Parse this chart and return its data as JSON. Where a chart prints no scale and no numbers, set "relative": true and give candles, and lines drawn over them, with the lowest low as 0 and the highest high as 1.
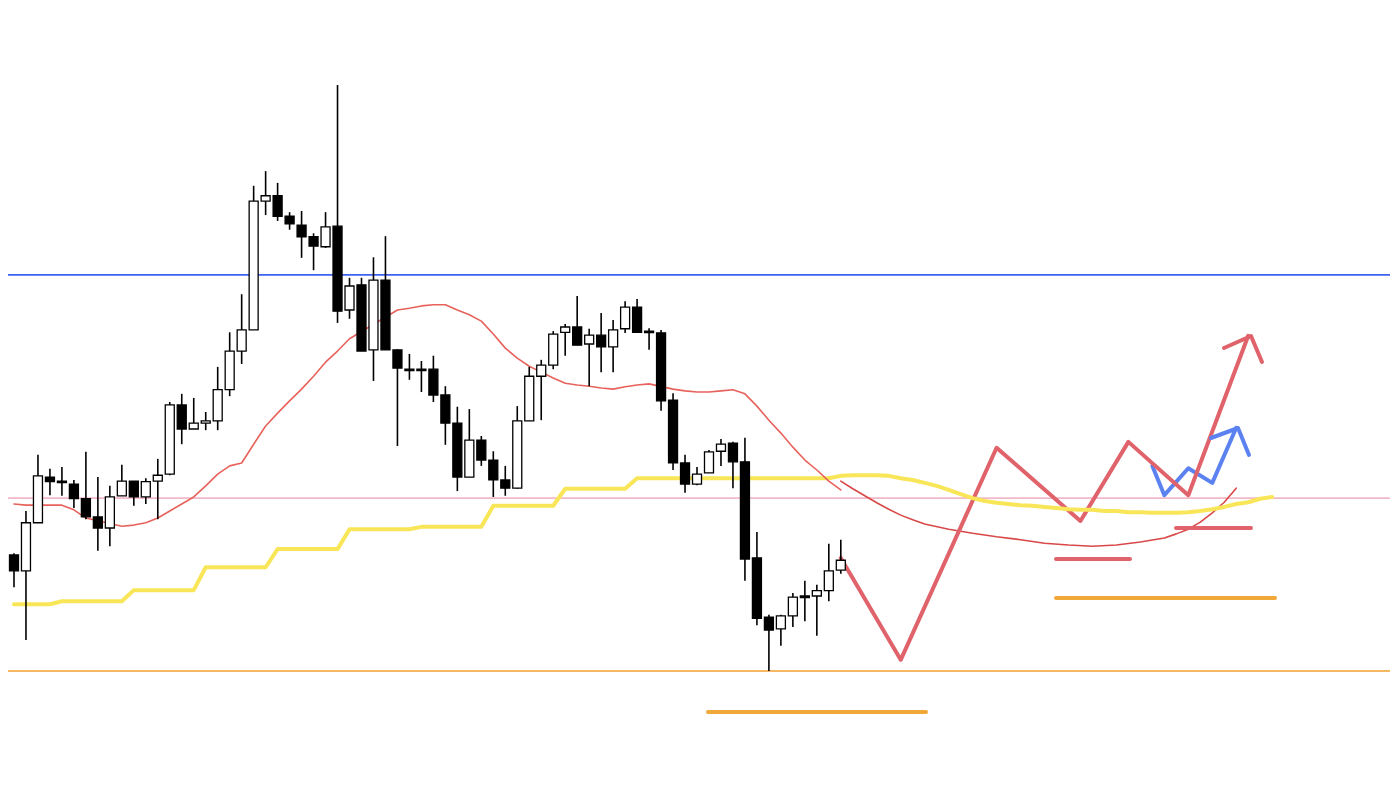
{
  "chart_data": {
    "type": "candlestick",
    "relative": true,
    "marker": "none",
    "legend": false,
    "categories": [
      null,
      null,
      null,
      null,
      null,
      null,
      null,
      null,
      null,
      null,
      null,
      null,
      null,
      null,
      null,
      null,
      null,
      null,
      null,
      null,
      null,
      null,
      null,
      null,
      null,
      null,
      null,
      null,
      null,
      null,
      null,
      null,
      null,
      null,
      null,
      null,
      null,
      null,
      null,
      null,
      null,
      null,
      null,
      null,
      null,
      null,
      null,
      null,
      null,
      null,
      null,
      null,
      null,
      null,
      null,
      null,
      null,
      null,
      null,
      null,
      null,
      null,
      null,
      null,
      null,
      null,
      null,
      null,
      null,
      null,
      null,
      null,
      null,
      null,
      null,
      null,
      null,
      null,
      null,
      null,
      null,
      null,
      null,
      null,
      null,
      null,
      null,
      null,
      null,
      null,
      null,
      null,
      null,
      null,
      null,
      null,
      null,
      null,
      null,
      null,
      null,
      null,
      null,
      null,
      null,
      null,
      null,
      null,
      null,
      null,
      null,
      null,
      null,
      null,
      null,
      null
    ],
    "ohlc": [
      [
        0.198,
        0.201,
        0.143,
        0.171
      ],
      [
        0.171,
        0.273,
        0.053,
        0.253
      ],
      [
        0.253,
        0.369,
        0.253,
        0.333
      ],
      [
        0.331,
        0.345,
        0.3,
        0.323
      ],
      [
        0.324,
        0.348,
        0.299,
        0.323
      ],
      [
        0.319,
        0.326,
        0.278,
        0.294
      ],
      [
        0.294,
        0.374,
        0.259,
        0.263
      ],
      [
        0.263,
        0.331,
        0.205,
        0.244
      ],
      [
        0.244,
        0.316,
        0.213,
        0.297
      ],
      [
        0.299,
        0.352,
        0.299,
        0.324
      ],
      [
        0.324,
        0.324,
        0.282,
        0.297
      ],
      [
        0.297,
        0.329,
        0.285,
        0.323
      ],
      [
        0.324,
        0.362,
        0.259,
        0.334
      ],
      [
        0.336,
        0.459,
        0.334,
        0.454
      ],
      [
        0.454,
        0.473,
        0.387,
        0.413
      ],
      [
        0.413,
        0.466,
        0.413,
        0.423
      ],
      [
        0.423,
        0.442,
        0.411,
        0.427
      ],
      [
        0.427,
        0.519,
        0.411,
        0.48
      ],
      [
        0.48,
        0.578,
        0.469,
        0.546
      ],
      [
        0.546,
        0.643,
        0.524,
        0.582
      ],
      [
        0.582,
        0.828,
        0.582,
        0.802
      ],
      [
        0.802,
        0.853,
        0.778,
        0.811
      ],
      [
        0.811,
        0.833,
        0.768,
        0.776
      ],
      [
        0.776,
        0.783,
        0.753,
        0.763
      ],
      [
        0.761,
        0.785,
        0.705,
        0.741
      ],
      [
        0.741,
        0.747,
        0.684,
        0.725
      ],
      [
        0.724,
        0.783,
        0.722,
        0.758
      ],
      [
        0.759,
        1,
        0.594,
        0.614
      ],
      [
        0.616,
        0.671,
        0.601,
        0.657
      ],
      [
        0.659,
        0.671,
        0.546,
        0.546
      ],
      [
        0.548,
        0.706,
        0.495,
        0.667
      ],
      [
        0.667,
        0.742,
        0.548,
        0.548
      ],
      [
        0.548,
        0.549,
        0.384,
        0.517
      ],
      [
        0.515,
        0.541,
        0.497,
        0.514
      ],
      [
        0.515,
        0.529,
        0.476,
        0.514
      ],
      [
        0.515,
        0.538,
        0.459,
        0.471
      ],
      [
        0.471,
        0.486,
        0.386,
        0.423
      ],
      [
        0.423,
        0.451,
        0.307,
        0.331
      ],
      [
        0.331,
        0.447,
        0.331,
        0.394
      ],
      [
        0.394,
        0.401,
        0.35,
        0.36
      ],
      [
        0.36,
        0.375,
        0.297,
        0.326
      ],
      [
        0.326,
        0.35,
        0.299,
        0.312
      ],
      [
        0.312,
        0.452,
        0.311,
        0.427
      ],
      [
        0.427,
        0.519,
        0.427,
        0.503
      ],
      [
        0.503,
        0.531,
        0.428,
        0.522
      ],
      [
        0.522,
        0.58,
        0.515,
        0.575
      ],
      [
        0.578,
        0.592,
        0.538,
        0.587
      ],
      [
        0.587,
        0.64,
        0.556,
        0.556
      ],
      [
        0.558,
        0.584,
        0.486,
        0.573
      ],
      [
        0.573,
        0.611,
        0.51,
        0.553
      ],
      [
        0.553,
        0.599,
        0.51,
        0.582
      ],
      [
        0.584,
        0.631,
        0.577,
        0.621
      ],
      [
        0.621,
        0.635,
        0.578,
        0.578
      ],
      [
        0.58,
        0.585,
        0.548,
        0.578
      ],
      [
        0.577,
        0.582,
        0.444,
        0.461
      ],
      [
        0.462,
        0.474,
        0.343,
        0.355
      ],
      [
        0.355,
        0.369,
        0.304,
        0.319
      ],
      [
        0.319,
        0.348,
        0.317,
        0.336
      ],
      [
        0.338,
        0.377,
        0.338,
        0.374
      ],
      [
        0.375,
        0.396,
        0.35,
        0.387
      ],
      [
        0.389,
        0.391,
        0.312,
        0.357
      ],
      [
        0.357,
        0.398,
        0.154,
        0.191
      ],
      [
        0.193,
        0.237,
        0.078,
        0.09
      ],
      [
        0.092,
        0.096,
        0,
        0.07
      ],
      [
        0.072,
        0.096,
        0.043,
        0.094
      ],
      [
        0.094,
        0.133,
        0.075,
        0.126
      ],
      [
        0.126,
        0.154,
        0.085,
        0.128
      ],
      [
        0.128,
        0.147,
        0.06,
        0.137
      ],
      [
        0.137,
        0.217,
        0.119,
        0.171
      ],
      [
        0.172,
        0.224,
        0.166,
        0.189
      ],
      null,
      null,
      null,
      null,
      null,
      null,
      null,
      null,
      null,
      null,
      null,
      null,
      null,
      null,
      null,
      null,
      null,
      null,
      null,
      null,
      null,
      null,
      null,
      null,
      null,
      null,
      null,
      null,
      null,
      null,
      null,
      null,
      null,
      null,
      null,
      null,
      null,
      null,
      null,
      null,
      null,
      null,
      null,
      null,
      null,
      null
    ],
    "series": [
      {
        "type": "line",
        "color": "#e8625c",
        "values": [
          0.285,
          0.283,
          null,
          0.283,
          0.283,
          0.275,
          0.261,
          null,
          null,
          0.247,
          0.249,
          0.253,
          0.261,
          0.273,
          0.285,
          0.297,
          0.316,
          0.336,
          0.35,
          0.355,
          0.387,
          0.418,
          0.44,
          0.461,
          0.481,
          0.503,
          0.527,
          0.546,
          0.567,
          null,
          null,
          null,
          0.616,
          0.619,
          0.623,
          0.625,
          0.625,
          0.616,
          0.608,
          0.597,
          0.575,
          0.551,
          0.534,
          0.52,
          0.51,
          0.5,
          0.491,
          0.488,
          0.486,
          0.483,
          0.481,
          0.485,
          0.488,
          0.49,
          null,
          0.481,
          0.478,
          0.476,
          0.476,
          0.478,
          0.48,
          0.473,
          0.452,
          0.428,
          0.406,
          0.382,
          0.36,
          0.343,
          0.324,
          0.309,
          null,
          null,
          null,
          null,
          null,
          null,
          null,
          null,
          null,
          null,
          null,
          null,
          null,
          null,
          null,
          null,
          null,
          null,
          null,
          null,
          null,
          null,
          null,
          null,
          null,
          null,
          null,
          null,
          null,
          null,
          null,
          null,
          null,
          null,
          null,
          null,
          null,
          null,
          null,
          null,
          null,
          null,
          null,
          null,
          null,
          null
        ]
      },
      {
        "type": "line",
        "color": "#f8e658",
        "values": [
          0.114,
          0.114,
          0.114,
          0.114,
          0.119,
          0.119,
          0.119,
          0.119,
          0.119,
          0.119,
          0.138,
          0.138,
          0.138,
          0.138,
          0.138,
          0.138,
          0.177,
          0.177,
          0.177,
          0.177,
          0.177,
          0.177,
          0.208,
          0.208,
          0.208,
          0.208,
          0.208,
          0.208,
          0.242,
          0.242,
          0.242,
          0.242,
          0.242,
          0.242,
          0.246,
          0.246,
          0.246,
          0.246,
          0.246,
          0.246,
          0.282,
          0.282,
          0.282,
          0.282,
          0.282,
          0.282,
          0.311,
          0.311,
          0.311,
          0.311,
          0.311,
          0.311,
          0.329,
          0.329,
          0.329,
          0.329,
          null,
          0.329,
          0.329,
          0.329,
          0.329,
          null,
          0.329,
          0.329,
          0.329,
          0.329,
          0.329,
          0.329,
          0.329,
          0.333,
          0.334,
          0.334,
          0.334,
          0.333,
          0.329,
          0.326,
          0.321,
          0.316,
          0.309,
          0.302,
          0.295,
          0.29,
          0.287,
          0.285,
          0.283,
          0.282,
          0.28,
          0.278,
          0.276,
          0.275,
          0.275,
          0.273,
          0.273,
          0.271,
          0.271,
          0.27,
          0.27,
          0.27,
          0.271,
          0.273,
          0.276,
          0.28,
          0.285,
          0.288,
          0.294,
          0.297,
          null,
          null,
          null,
          null,
          null,
          null,
          null,
          null,
          null,
          null
        ]
      },
      {
        "type": "line",
        "color": "#e0626a",
        "values": [
          null,
          null,
          null,
          null,
          null,
          null,
          null,
          null,
          null,
          null,
          null,
          null,
          null,
          null,
          null,
          null,
          null,
          null,
          null,
          null,
          null,
          null,
          null,
          null,
          null,
          null,
          null,
          null,
          null,
          null,
          null,
          null,
          null,
          null,
          null,
          null,
          null,
          null,
          null,
          null,
          null,
          null,
          null,
          null,
          null,
          null,
          null,
          null,
          null,
          null,
          null,
          null,
          null,
          null,
          null,
          null,
          null,
          null,
          null,
          null,
          null,
          null,
          null,
          null,
          null,
          null,
          null,
          null,
          null,
          0.193,
          null,
          null,
          null,
          null,
          0.019,
          null,
          null,
          null,
          null,
          null,
          null,
          null,
          0.381,
          null,
          null,
          null,
          null,
          null,
          null,
          0.256,
          null,
          null,
          null,
          0.391,
          null,
          null,
          null,
          null,
          0.3,
          null,
          null,
          null,
          null,
          0.572,
          null,
          null,
          null,
          null,
          null,
          null,
          null,
          null,
          null,
          null,
          null,
          null
        ]
      },
      {
        "type": "line",
        "color": "#5b82f0",
        "values": [
          null,
          null,
          null,
          null,
          null,
          null,
          null,
          null,
          null,
          null,
          null,
          null,
          null,
          null,
          null,
          null,
          null,
          null,
          null,
          null,
          null,
          null,
          null,
          null,
          null,
          null,
          null,
          null,
          null,
          null,
          null,
          null,
          null,
          null,
          null,
          null,
          null,
          null,
          null,
          null,
          null,
          null,
          null,
          null,
          null,
          null,
          null,
          null,
          null,
          null,
          null,
          null,
          null,
          null,
          null,
          null,
          null,
          null,
          null,
          null,
          null,
          null,
          null,
          null,
          null,
          null,
          null,
          null,
          null,
          null,
          null,
          null,
          null,
          null,
          null,
          null,
          null,
          null,
          null,
          null,
          null,
          null,
          null,
          null,
          null,
          null,
          null,
          null,
          null,
          null,
          null,
          null,
          null,
          null,
          null,
          0.35,
          0.3,
          null,
          0.346,
          null,
          0.321,
          null,
          0.415,
          null,
          null,
          null,
          null,
          null,
          null,
          null,
          null,
          null,
          null,
          null,
          null,
          null
        ]
      },
      {
        "type": "line",
        "color": "#d84848",
        "values": [
          null,
          null,
          null,
          null,
          null,
          null,
          null,
          null,
          null,
          null,
          null,
          null,
          null,
          null,
          null,
          null,
          null,
          null,
          null,
          null,
          null,
          null,
          null,
          null,
          null,
          null,
          null,
          null,
          null,
          null,
          null,
          null,
          null,
          null,
          null,
          null,
          null,
          null,
          null,
          null,
          null,
          null,
          null,
          null,
          null,
          null,
          null,
          null,
          null,
          null,
          null,
          null,
          null,
          null,
          null,
          null,
          null,
          null,
          null,
          null,
          null,
          null,
          null,
          null,
          null,
          null,
          null,
          null,
          null,
          0.324,
          0.311,
          0.299,
          0.287,
          0.276,
          0.266,
          0.258,
          0.251,
          null,
          0.242,
          null,
          0.235,
          null,
          0.229,
          null,
          0.224,
          null,
          0.218,
          null,
          0.215,
          null,
          0.213,
          null,
          0.215,
          null,
          0.22,
          null,
          0.227,
          0.234,
          0.242,
          0.254,
          0.27,
          0.288,
          0.312,
          null,
          null,
          null,
          null,
          null,
          null,
          null,
          null,
          null,
          null,
          null,
          null,
          null
        ]
      }
    ],
    "ref_lines": [
      {
        "axis": "y",
        "value": 0.676,
        "color": "#3f63f0"
      },
      {
        "axis": "y",
        "value": 0.295,
        "color": "#f2b9c9"
      },
      {
        "axis": "y",
        "value": 0,
        "color": "#f0a030"
      }
    ]
  }
}
